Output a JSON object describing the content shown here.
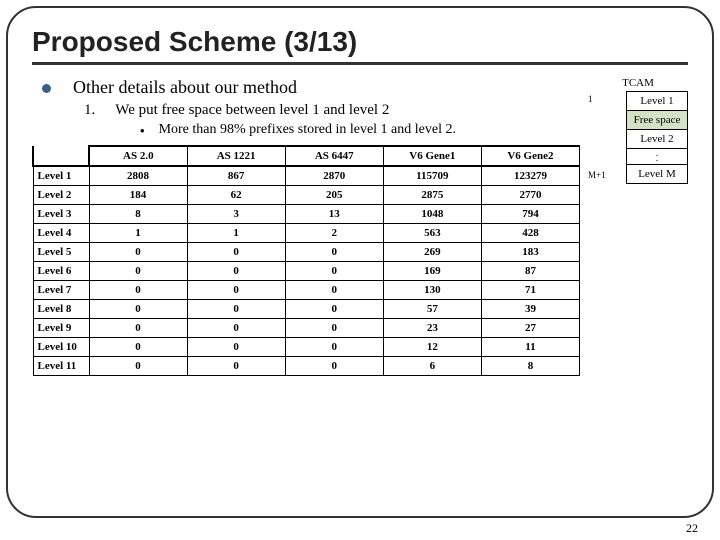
{
  "title": "Proposed Scheme (3/13)",
  "bullet": "Other details about our method",
  "num_label": "1.",
  "num_text": "We put free space between level 1 and level 2",
  "sub_text": "More than 98% prefixes stored in level 1 and level 2.",
  "table": {
    "columns": [
      "",
      "AS 2.0",
      "AS 1221",
      "AS 6447",
      "V6 Gene1",
      "V6 Gene2"
    ],
    "rows": [
      [
        "Level 1",
        "2808",
        "867",
        "2870",
        "115709",
        "123279"
      ],
      [
        "Level 2",
        "184",
        "62",
        "205",
        "2875",
        "2770"
      ],
      [
        "Level 3",
        "8",
        "3",
        "13",
        "1048",
        "794"
      ],
      [
        "Level 4",
        "1",
        "1",
        "2",
        "563",
        "428"
      ],
      [
        "Level 5",
        "0",
        "0",
        "0",
        "269",
        "183"
      ],
      [
        "Level 6",
        "0",
        "0",
        "0",
        "169",
        "87"
      ],
      [
        "Level 7",
        "0",
        "0",
        "0",
        "130",
        "71"
      ],
      [
        "Level 8",
        "0",
        "0",
        "0",
        "57",
        "39"
      ],
      [
        "Level 9",
        "0",
        "0",
        "0",
        "23",
        "27"
      ],
      [
        "Level 10",
        "0",
        "0",
        "0",
        "12",
        "11"
      ],
      [
        "Level 11",
        "0",
        "0",
        "0",
        "6",
        "8"
      ]
    ]
  },
  "tcam": {
    "title": "TCAM",
    "top_label": "1",
    "bottom_label": "M+1",
    "cells": [
      "Level 1",
      "Free space",
      "Level 2",
      "Level M"
    ],
    "free_color": "#d4e3c5"
  },
  "page_num": "22"
}
